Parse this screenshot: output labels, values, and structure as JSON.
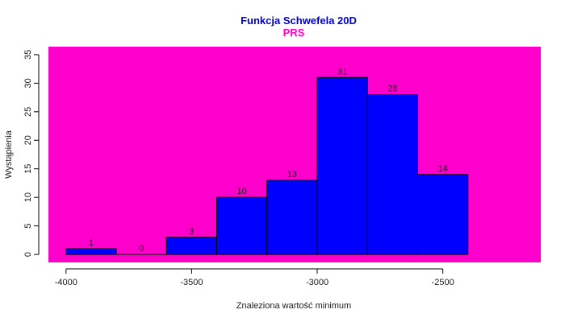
{
  "chart_data": {
    "type": "bar",
    "title": "Funkcja Schwefela 20D",
    "subtitle": "PRS",
    "xlabel": "Znaleziona wartość minimum",
    "ylabel": "Wystąpienia",
    "bins": [
      {
        "start": -4000,
        "end": -3800,
        "count": 1
      },
      {
        "start": -3800,
        "end": -3600,
        "count": 0
      },
      {
        "start": -3600,
        "end": -3400,
        "count": 3
      },
      {
        "start": -3400,
        "end": -3200,
        "count": 10
      },
      {
        "start": -3200,
        "end": -3000,
        "count": 13
      },
      {
        "start": -3000,
        "end": -2800,
        "count": 31
      },
      {
        "start": -2800,
        "end": -2600,
        "count": 28
      },
      {
        "start": -2600,
        "end": -2400,
        "count": 14
      }
    ],
    "x_ticks": [
      -4000,
      -3500,
      -3000,
      -2500
    ],
    "y_ticks": [
      0,
      5,
      10,
      15,
      20,
      25,
      30,
      35
    ],
    "xlim": [
      -4070,
      -2110
    ],
    "ylim": [
      -1.4,
      36.4
    ],
    "grid": false,
    "legend": "none",
    "colors": {
      "plot_background": "#ff00cc",
      "bar_fill": "#0000ff",
      "title": "#0000cc",
      "subtitle": "#ff00cc"
    }
  }
}
